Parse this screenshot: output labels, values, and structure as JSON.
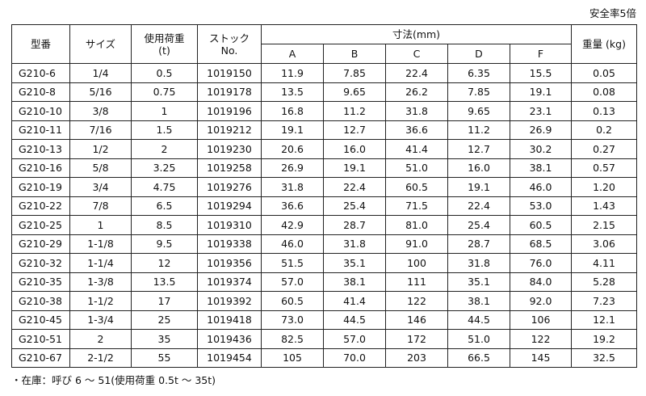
{
  "header": {
    "note": "安全率5倍"
  },
  "table": {
    "headers": [
      [
        "型番"
      ],
      [
        "サイズ"
      ],
      [
        "使用荷重",
        "(t)"
      ],
      [
        "ストック",
        "No."
      ],
      [
        "寸法(mm)"
      ],
      [
        "重量 (kg)"
      ]
    ],
    "subheaders": [
      "A",
      "B",
      "C",
      "D",
      "F"
    ],
    "rows": [
      [
        "G210-6",
        "1/4",
        "0.5",
        "1019150",
        "11.9",
        "7.85",
        "22.4",
        "6.35",
        "15.5",
        "0.05"
      ],
      [
        "G210-8",
        "5/16",
        "0.75",
        "1019178",
        "13.5",
        "9.65",
        "26.2",
        "7.85",
        "19.1",
        "0.08"
      ],
      [
        "G210-10",
        "3/8",
        "1",
        "1019196",
        "16.8",
        "11.2",
        "31.8",
        "9.65",
        "23.1",
        "0.13"
      ],
      [
        "G210-11",
        "7/16",
        "1.5",
        "1019212",
        "19.1",
        "12.7",
        "36.6",
        "11.2",
        "26.9",
        "0.2"
      ],
      [
        "G210-13",
        "1/2",
        "2",
        "1019230",
        "20.6",
        "16.0",
        "41.4",
        "12.7",
        "30.2",
        "0.27"
      ],
      [
        "G210-16",
        "5/8",
        "3.25",
        "1019258",
        "26.9",
        "19.1",
        "51.0",
        "16.0",
        "38.1",
        "0.57"
      ],
      [
        "G210-19",
        "3/4",
        "4.75",
        "1019276",
        "31.8",
        "22.4",
        "60.5",
        "19.1",
        "46.0",
        "1.20"
      ],
      [
        "G210-22",
        "7/8",
        "6.5",
        "1019294",
        "36.6",
        "25.4",
        "71.5",
        "22.4",
        "53.0",
        "1.43"
      ],
      [
        "G210-25",
        "1",
        "8.5",
        "1019310",
        "42.9",
        "28.7",
        "81.0",
        "25.4",
        "60.5",
        "2.15"
      ],
      [
        "G210-29",
        "1-1/8",
        "9.5",
        "1019338",
        "46.0",
        "31.8",
        "91.0",
        "28.7",
        "68.5",
        "3.06"
      ],
      [
        "G210-32",
        "1-1/4",
        "12",
        "1019356",
        "51.5",
        "35.1",
        "100",
        "31.8",
        "76.0",
        "4.11"
      ],
      [
        "G210-35",
        "1-3/8",
        "13.5",
        "1019374",
        "57.0",
        "38.1",
        "111",
        "35.1",
        "84.0",
        "5.28"
      ],
      [
        "G210-38",
        "1-1/2",
        "17",
        "1019392",
        "60.5",
        "41.4",
        "122",
        "38.1",
        "92.0",
        "7.23"
      ],
      [
        "G210-45",
        "1-3/4",
        "25",
        "1019418",
        "73.0",
        "44.5",
        "146",
        "44.5",
        "106",
        "12.1"
      ],
      [
        "G210-51",
        "2",
        "35",
        "1019436",
        "82.5",
        "57.0",
        "172",
        "51.0",
        "122",
        "19.2"
      ],
      [
        "G210-67",
        "2-1/2",
        "55",
        "1019454",
        "105",
        "70.0",
        "203",
        "66.5",
        "145",
        "32.5"
      ]
    ]
  },
  "footer": {
    "note": "・在庫：呼び 6 〜 51(使用荷重 0.5t 〜 35t)"
  }
}
